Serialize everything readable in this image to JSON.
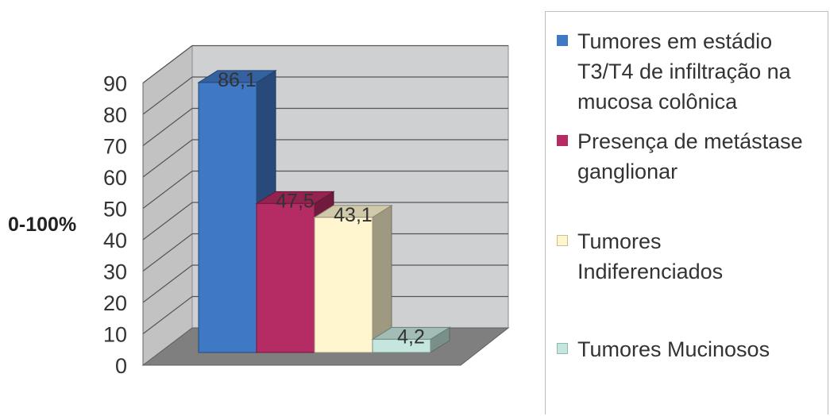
{
  "chart_data": {
    "type": "bar",
    "ylabel": "0-100%",
    "ylim": [
      0,
      90
    ],
    "yticks": [
      0,
      10,
      20,
      30,
      40,
      50,
      60,
      70,
      80,
      90
    ],
    "grid": true,
    "legend_position": "right",
    "series": [
      {
        "name": "Tumores em estádio T3/T4 de infiltração na mucosa colônica",
        "value": 86.1,
        "label": "86,1",
        "color": "#3f78c4"
      },
      {
        "name": "Presença de metástase ganglionar",
        "value": 47.5,
        "label": "47,5",
        "color": "#b52b63"
      },
      {
        "name": "Tumores Indiferenciados",
        "value": 43.1,
        "label": "43,1",
        "color": "#fff6cf"
      },
      {
        "name": "Tumores Mucinosos",
        "value": 4.2,
        "label": "4,2",
        "color": "#c5e6de"
      }
    ]
  }
}
